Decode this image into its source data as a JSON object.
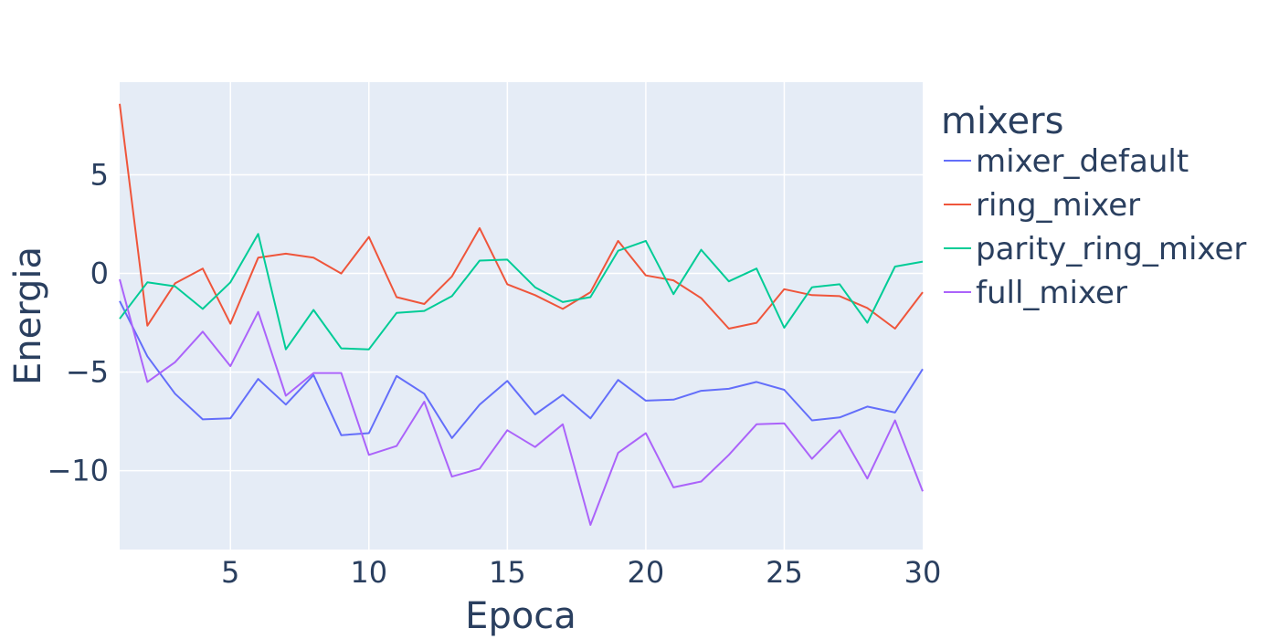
{
  "chart_data": {
    "type": "line",
    "xlabel": "Epoca",
    "ylabel": "Energia",
    "xlim": [
      1,
      30
    ],
    "ylim": [
      -14,
      9.7
    ],
    "xticks": [
      5,
      10,
      15,
      20,
      25,
      30
    ],
    "yticks": [
      5,
      0,
      -5,
      -10
    ],
    "ytick_labels": [
      "5",
      "0",
      "−5",
      "−10"
    ],
    "grid": true,
    "background": "#e5ecf6",
    "legend": {
      "title": "mixers",
      "placement": "right"
    },
    "x": [
      1,
      2,
      3,
      4,
      5,
      6,
      7,
      8,
      9,
      10,
      11,
      12,
      13,
      14,
      15,
      16,
      17,
      18,
      19,
      20,
      21,
      22,
      23,
      24,
      25,
      26,
      27,
      28,
      29,
      30
    ],
    "series": [
      {
        "name": "mixer_default",
        "color": "#636efa",
        "values": [
          -1.4,
          -4.2,
          -6.1,
          -7.4,
          -7.35,
          -5.35,
          -6.65,
          -5.15,
          -8.2,
          -8.1,
          -5.2,
          -6.1,
          -8.35,
          -6.65,
          -5.45,
          -7.15,
          -6.15,
          -7.35,
          -5.4,
          -6.45,
          -6.4,
          -5.95,
          -5.85,
          -5.5,
          -5.9,
          -7.45,
          -7.3,
          -6.75,
          -7.05,
          -4.85
        ]
      },
      {
        "name": "ring_mixer",
        "color": "#ef553b",
        "values": [
          8.6,
          -2.65,
          -0.5,
          0.25,
          -2.55,
          0.8,
          1.0,
          0.8,
          0.0,
          1.85,
          -1.2,
          -1.55,
          -0.15,
          2.3,
          -0.55,
          -1.1,
          -1.8,
          -0.95,
          1.65,
          -0.1,
          -0.35,
          -1.25,
          -2.8,
          -2.5,
          -0.8,
          -1.1,
          -1.15,
          -1.75,
          -2.8,
          -0.95
        ]
      },
      {
        "name": "parity_ring_mixer",
        "color": "#00cc96",
        "values": [
          -2.3,
          -0.45,
          -0.65,
          -1.8,
          -0.45,
          2.0,
          -3.85,
          -1.85,
          -3.8,
          -3.85,
          -2.0,
          -1.9,
          -1.15,
          0.65,
          0.7,
          -0.7,
          -1.45,
          -1.2,
          1.15,
          1.65,
          -1.05,
          1.2,
          -0.4,
          0.25,
          -2.75,
          -0.7,
          -0.55,
          -2.5,
          0.35,
          0.6
        ]
      },
      {
        "name": "full_mixer",
        "color": "#ab63fa",
        "values": [
          -0.3,
          -5.5,
          -4.5,
          -2.95,
          -4.7,
          -1.95,
          -6.2,
          -5.05,
          -5.05,
          -9.2,
          -8.75,
          -6.5,
          -10.3,
          -9.9,
          -7.95,
          -8.8,
          -7.65,
          -12.75,
          -9.1,
          -8.1,
          -10.85,
          -10.55,
          -9.2,
          -7.65,
          -7.6,
          -9.4,
          -7.95,
          -10.4,
          -7.45,
          -11.05
        ]
      }
    ]
  }
}
